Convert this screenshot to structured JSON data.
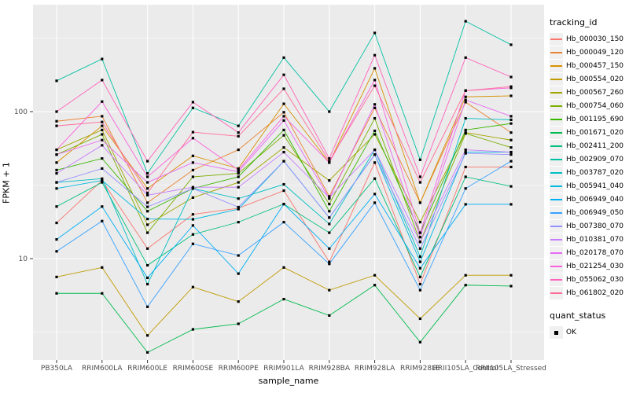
{
  "figure_title": "",
  "axes": {
    "x_title": "sample_name",
    "y_title": "FPKM + 1",
    "y_scale": "log10",
    "y_major_ticks": [
      10,
      100
    ],
    "y_minor_breaks": [
      3.1623,
      31.623,
      316.23
    ],
    "panel_bg": "#ebebeb",
    "grid_color": "#ffffff",
    "tick_label_color": "#4d4d4d"
  },
  "legend": {
    "color_title": "tracking_id",
    "shape_title": "quant_status",
    "shape_items": [
      {
        "label": "OK",
        "shape": "filled-square",
        "color": "#000000"
      }
    ]
  },
  "chart_data": {
    "type": "line",
    "title": "",
    "xlabel": "sample_name",
    "ylabel": "FPKM + 1",
    "yscale": "log",
    "ylim": [
      2,
      450
    ],
    "grid": true,
    "legend_position": "right",
    "point_marker": {
      "shape": "square",
      "color": "#000000",
      "meaning": "quant_status OK"
    },
    "categories": [
      "PB350LA",
      "RRIM600LA",
      "RRIM600LE",
      "RRIM600SE",
      "RRIM600PE",
      "RRIM901LA",
      "RRIM928BA",
      "RRIM928LA",
      "RRIM928LE",
      "RRII105LA_Control",
      "RRII105LA_Stressed"
    ],
    "series": [
      {
        "name": "Hb_000030_150",
        "color": "#F8766D",
        "values": [
          17.5,
          34,
          11.7,
          20,
          22,
          29,
          9.5,
          45,
          6.7,
          42,
          42
        ]
      },
      {
        "name": "Hb_000049_120",
        "color": "#EA8331",
        "values": [
          86,
          93,
          24,
          40,
          55,
          99,
          26.5,
          106,
          24,
          116,
          72
        ]
      },
      {
        "name": "Hb_000457_150",
        "color": "#D89000",
        "values": [
          45,
          80,
          30,
          50,
          41,
          113,
          45,
          197,
          24,
          126,
          128
        ]
      },
      {
        "name": "Hb_000554_020",
        "color": "#C09B00",
        "values": [
          7.5,
          8.7,
          3.0,
          6.4,
          5.1,
          8.7,
          6.1,
          7.7,
          3.9,
          7.7,
          7.7
        ]
      },
      {
        "name": "Hb_000567_260",
        "color": "#A3A500",
        "values": [
          55,
          75,
          17,
          26,
          33,
          57,
          34,
          70,
          17.7,
          72,
          64
        ]
      },
      {
        "name": "Hb_000754_060",
        "color": "#7CAE00",
        "values": [
          51,
          70,
          15,
          36,
          38,
          69,
          23.5,
          90,
          13,
          71,
          57
        ]
      },
      {
        "name": "Hb_001195_690",
        "color": "#39B600",
        "values": [
          40,
          48,
          21,
          30,
          36,
          75,
          21,
          74,
          15,
          75,
          83
        ]
      },
      {
        "name": "Hb_001671_020",
        "color": "#00BB4E",
        "values": [
          5.8,
          5.8,
          2.3,
          3.3,
          3.6,
          5.3,
          4.1,
          6.6,
          2.7,
          6.6,
          6.5
        ]
      },
      {
        "name": "Hb_002411_200",
        "color": "#00BF7D",
        "values": [
          22.6,
          33,
          9.0,
          14.6,
          17.7,
          23.5,
          15,
          35,
          7.5,
          36,
          31
        ]
      },
      {
        "name": "Hb_002909_070",
        "color": "#00C1A3",
        "values": [
          162,
          228,
          38,
          106,
          80,
          233,
          100,
          343,
          47,
          412,
          285
        ]
      },
      {
        "name": "Hb_003787_020",
        "color": "#00BFC4",
        "values": [
          33,
          35,
          6.7,
          30,
          25.6,
          32,
          17.2,
          55,
          10.3,
          90,
          88
        ]
      },
      {
        "name": "Hb_005941_040",
        "color": "#00BAE0",
        "values": [
          30,
          34,
          18.6,
          18.5,
          21.7,
          46,
          19,
          51,
          9.5,
          53,
          53
        ]
      },
      {
        "name": "Hb_006949_040",
        "color": "#00B0F6",
        "values": [
          13.5,
          22.6,
          7.4,
          16.8,
          7.9,
          23.5,
          11.7,
          27.5,
          8.6,
          23.4,
          23.4
        ]
      },
      {
        "name": "Hb_006949_050",
        "color": "#35A2FF",
        "values": [
          11.2,
          18,
          4.7,
          12.6,
          10.5,
          17.7,
          9.2,
          24,
          6.1,
          30,
          46
        ]
      },
      {
        "name": "Hb_007380_070",
        "color": "#9590FF",
        "values": [
          33,
          41,
          22.5,
          30,
          22.4,
          46,
          19,
          51,
          11.7,
          52,
          51
        ]
      },
      {
        "name": "Hb_010381_070",
        "color": "#C77CFF",
        "values": [
          38,
          59,
          27,
          30.6,
          30.6,
          53,
          26,
          55,
          13,
          55,
          53
        ]
      },
      {
        "name": "Hb_020178_070",
        "color": "#E76BF3",
        "values": [
          51,
          64,
          33,
          45,
          39,
          87,
          25.6,
          112,
          14,
          120,
          93
        ]
      },
      {
        "name": "Hb_021254_030",
        "color": "#FA62DB",
        "values": [
          55,
          117,
          36,
          66,
          40,
          93,
          45,
          164,
          15,
          139,
          145
        ]
      },
      {
        "name": "Hb_055062_030",
        "color": "#FF62BC",
        "values": [
          100,
          164,
          46,
          116,
          72,
          178,
          48,
          242,
          36,
          233,
          172
        ]
      },
      {
        "name": "Hb_061802_020",
        "color": "#FF6A98",
        "values": [
          80,
          85,
          28,
          72.5,
          68,
          143,
          46,
          150,
          33,
          139,
          148
        ]
      }
    ]
  }
}
